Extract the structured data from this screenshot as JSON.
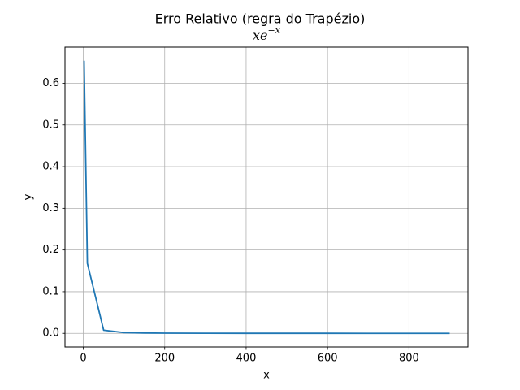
{
  "chart_data": {
    "type": "line",
    "title": "Erro Relativo (regra do Trapézio)",
    "subtitle": {
      "base": "xe",
      "exponent": "−x"
    },
    "xlabel": "x",
    "ylabel": "y",
    "xlim": [
      -45,
      945
    ],
    "ylim": [
      -0.0327,
      0.6867
    ],
    "xticks": [
      0,
      200,
      400,
      600,
      800
    ],
    "yticks": [
      0.0,
      0.1,
      0.2,
      0.3,
      0.4,
      0.5,
      0.6
    ],
    "xtick_labels": [
      "0",
      "200",
      "400",
      "600",
      "800"
    ],
    "ytick_labels": [
      "0.0",
      "0.1",
      "0.2",
      "0.3",
      "0.4",
      "0.5",
      "0.6"
    ],
    "grid": true,
    "series": [
      {
        "color": "#1f77b4",
        "x": [
          2,
          10,
          50,
          100,
          150,
          200,
          300,
          400,
          500,
          600,
          700,
          800,
          900
        ],
        "y": [
          0.654,
          0.168,
          0.0075,
          0.0018,
          0.0008,
          0.0005,
          0.0002,
          0.0001,
          0.0001,
          0.0001,
          0.0,
          0.0,
          0.0
        ]
      }
    ]
  }
}
